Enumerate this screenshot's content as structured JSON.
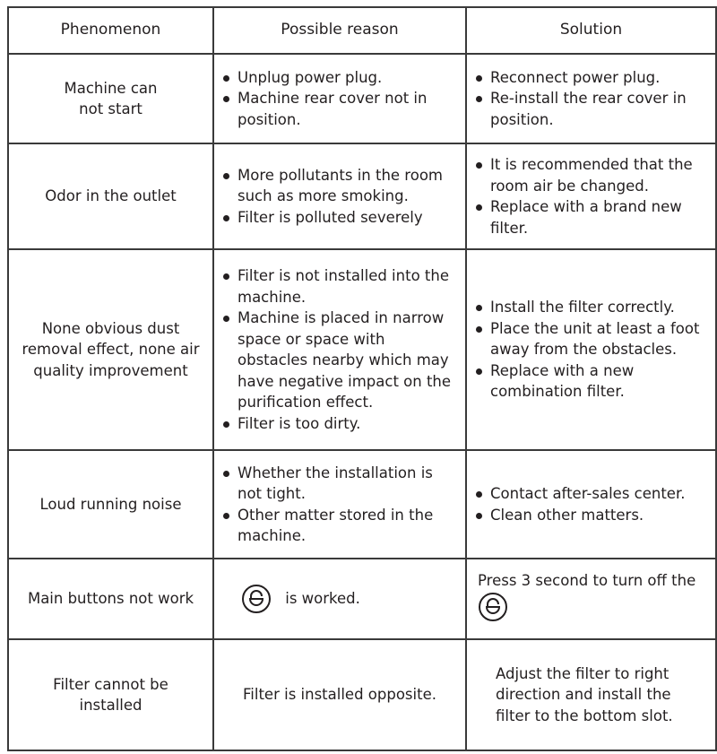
{
  "headers": [
    "Phenomenon",
    "Possible reason",
    "Solution"
  ],
  "rows": [
    {
      "phenomenon": "Machine can not start",
      "reasons": [
        "Unplug power plug.",
        "Machine rear cover not in position."
      ],
      "solutions": [
        "Reconnect power plug.",
        "Re-install the rear cover in position."
      ]
    },
    {
      "phenomenon": "Odor in the outlet",
      "reasons": [
        "More pollutants in the room such as more smoking.",
        "Filter is polluted severely"
      ],
      "solutions": [
        "It is recommended that the room air be changed.",
        "Replace with a brand new filter."
      ]
    },
    {
      "phenomenon": "None obvious dust removal effect, none air quality improvement",
      "reasons": [
        "Filter is not installed into the machine.",
        "Machine is placed in narrow space or space with obstacles nearby which may have negative impact on the purification effect.",
        "Filter is too dirty."
      ],
      "solutions": [
        "Install the filter correctly.",
        "Place the unit at least a foot away from the obstacles.",
        "Replace with a new combination filter."
      ]
    },
    {
      "phenomenon": "Loud running noise",
      "reasons": [
        "Whether the installation is not tight.",
        "Other matter stored in the machine."
      ],
      "solutions": [
        "Contact after-sales center.",
        "Clean other matters."
      ]
    },
    {
      "phenomenon": "Main buttons not work",
      "reason_text": "is worked.",
      "solution_text": "Press 3 second to turn off the",
      "icon": "child-lock-icon"
    },
    {
      "phenomenon": "Filter cannot be installed",
      "reason_text": "Filter is installed opposite.",
      "solution_text": "Adjust the filter to right direction and install the filter to the bottom slot."
    }
  ]
}
